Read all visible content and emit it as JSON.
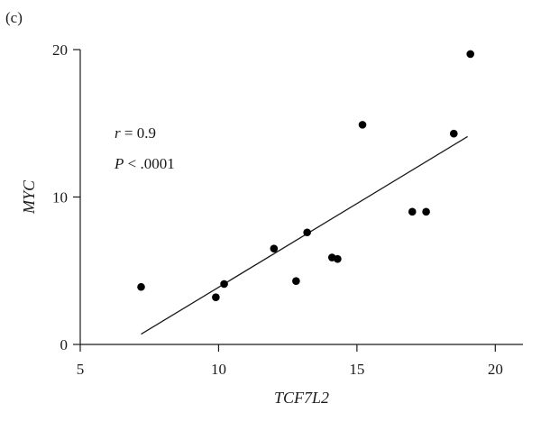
{
  "panel_label": "(c)",
  "chart_data": {
    "type": "scatter",
    "xlabel": "TCF7L2",
    "ylabel": "MYC",
    "xlim": [
      5,
      21
    ],
    "ylim": [
      0,
      20
    ],
    "x_ticks": [
      5,
      10,
      15,
      20
    ],
    "y_ticks": [
      0,
      10,
      20
    ],
    "grid": false,
    "points": [
      {
        "x": 7.2,
        "y": 3.9
      },
      {
        "x": 9.9,
        "y": 3.2
      },
      {
        "x": 10.2,
        "y": 4.1
      },
      {
        "x": 12.0,
        "y": 6.5
      },
      {
        "x": 12.8,
        "y": 4.3
      },
      {
        "x": 13.2,
        "y": 7.6
      },
      {
        "x": 14.1,
        "y": 5.9
      },
      {
        "x": 14.3,
        "y": 5.8
      },
      {
        "x": 15.2,
        "y": 14.9
      },
      {
        "x": 17.0,
        "y": 9.0
      },
      {
        "x": 17.5,
        "y": 9.0
      },
      {
        "x": 18.5,
        "y": 14.3
      },
      {
        "x": 19.1,
        "y": 19.7
      }
    ],
    "fit_line": {
      "x1": 7.2,
      "y1": 0.7,
      "x2": 19.0,
      "y2": 14.1
    },
    "annotations": {
      "r_symbol": "r",
      "r_rest": " = 0.9",
      "p_symbol": "P",
      "p_rest": " < .0001"
    }
  }
}
